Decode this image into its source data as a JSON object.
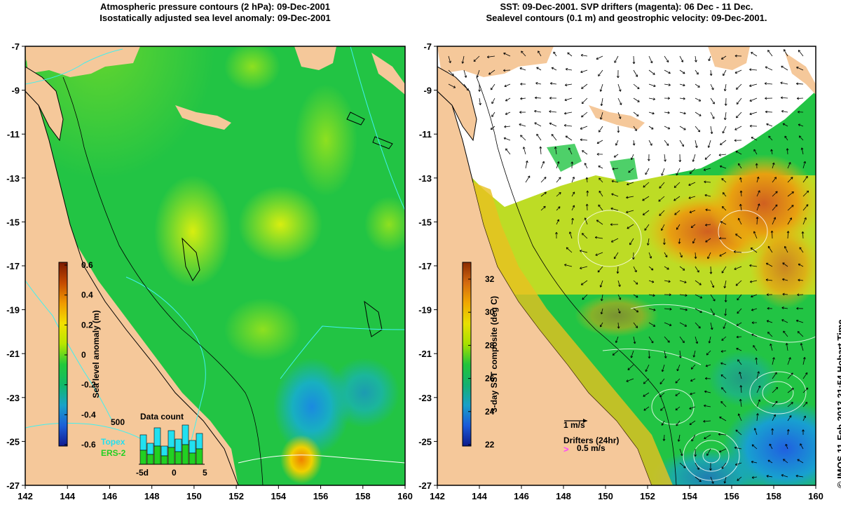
{
  "left_panel": {
    "title_line1": "Atmospheric pressure contours (2 hPa): 09-Dec-2001",
    "title_line2": "Isostatically adjusted sea level anomaly: 09-Dec-2001",
    "colorbar": {
      "label": "Sea level anomaly (m)",
      "ticks": [
        "0.6",
        "0.4",
        "0.2",
        "0",
        "-0.2",
        "-0.4",
        "-0.6"
      ],
      "colors": [
        "#7a1a00",
        "#c44a00",
        "#f09a00",
        "#f2e000",
        "#b8e600",
        "#22c93a",
        "#10b868",
        "#1aa2c8",
        "#1b5fd8",
        "#101a90"
      ]
    },
    "data_count": {
      "title": "Data count",
      "ymax_label": "500",
      "legend_topex": "Topex",
      "legend_ers2": "ERS-2",
      "xticks": [
        "-5d",
        "0",
        "5"
      ],
      "topex_color": "#22e0f0",
      "ers2_color": "#22d022"
    }
  },
  "right_panel": {
    "title_line1": "SST: 09-Dec-2001. SVP drifters (magenta): 06 Dec - 11 Dec.",
    "title_line2": "Sealevel contours (0.1 m) and geostrophic velocity: 09-Dec-2001.",
    "colorbar": {
      "label": "3-day SST composite (deg C)",
      "ticks": [
        "32",
        "30",
        "28",
        "26",
        "24",
        "22"
      ],
      "colors": [
        "#8a2a00",
        "#d46a10",
        "#f0a800",
        "#e8e000",
        "#a8e000",
        "#22c43a",
        "#14b070",
        "#18a0c8",
        "#1a5ad8",
        "#0c1a8a"
      ]
    },
    "velocity_key": "1 m/s",
    "drifters_label": "Drifters (24hr)",
    "drifter_speed": "0.5 m/s",
    "drifter_color": "#ff44ff"
  },
  "axes": {
    "x_ticks": [
      "142",
      "144",
      "146",
      "148",
      "150",
      "152",
      "154",
      "156",
      "158",
      "160"
    ],
    "y_ticks": [
      "-7",
      "-9",
      "-11",
      "-13",
      "-15",
      "-17",
      "-19",
      "-21",
      "-23",
      "-25",
      "-27"
    ]
  },
  "colors": {
    "land": "#f5c89a",
    "sea_green": "#22c444",
    "no_data": "#ffffff"
  },
  "credit": "© IMOS 11-Feb-2013 21:54 Hobart Time"
}
